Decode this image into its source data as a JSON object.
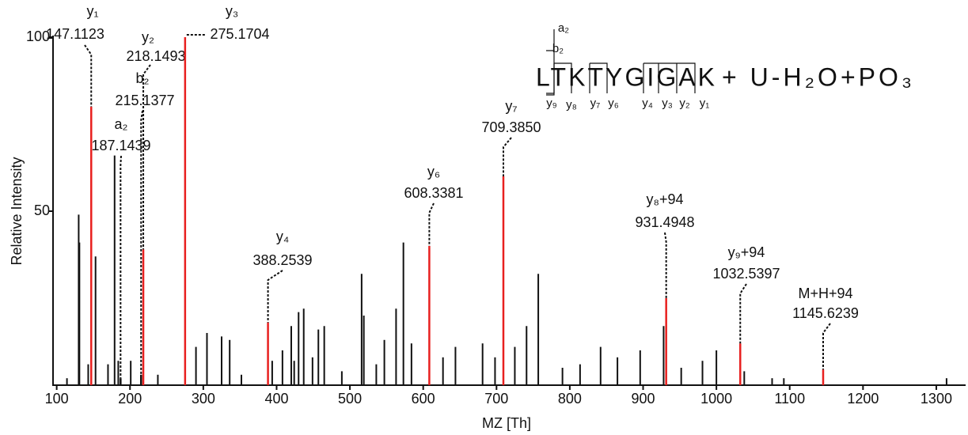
{
  "chart_data": {
    "type": "spectrum",
    "xlabel": "MZ [Th]",
    "ylabel": "Relative Intensity",
    "xlim": [
      95,
      1340
    ],
    "ylim": [
      0,
      100
    ],
    "xticks": [
      100,
      200,
      300,
      400,
      500,
      600,
      700,
      800,
      900,
      1000,
      1100,
      1200,
      1300
    ],
    "yticks": [
      50,
      100
    ],
    "peaks": {
      "color": "#111111",
      "x": [
        114,
        130,
        131,
        143,
        153,
        170,
        179,
        184,
        201,
        238,
        290,
        305,
        325,
        336,
        352,
        394,
        408,
        420,
        424,
        430,
        437,
        449,
        457,
        465,
        489,
        516,
        519,
        536,
        547,
        563,
        573,
        584,
        627,
        644,
        681,
        698,
        725,
        741,
        757,
        790,
        814,
        842,
        865,
        896,
        928,
        952,
        981,
        1000,
        1038,
        1076,
        1092,
        1314
      ],
      "values": [
        2,
        49,
        41,
        6,
        37,
        6,
        66,
        7,
        7,
        3,
        11,
        15,
        14,
        13,
        3,
        7,
        10,
        17,
        7,
        21,
        22,
        8,
        16,
        17,
        4,
        32,
        20,
        6,
        13,
        22,
        41,
        12,
        8,
        11,
        12,
        8,
        11,
        17,
        32,
        5,
        6,
        11,
        8,
        10,
        17,
        5,
        7,
        10,
        4,
        2,
        2,
        2
      ]
    },
    "annotations": [
      {
        "ion": "y₁",
        "x": 147.1123,
        "value": 80,
        "color": "#e8201f"
      },
      {
        "ion": "y₂",
        "x": 218.1493,
        "value": 39,
        "color": "#e8201f"
      },
      {
        "ion": "b₂",
        "x": 215.1377,
        "value": 3,
        "color": "#111111"
      },
      {
        "ion": "a₂",
        "x": 187.1439,
        "value": 2,
        "color": "#111111"
      },
      {
        "ion": "y₃",
        "x": 275.1704,
        "value": 100,
        "color": "#e8201f"
      },
      {
        "ion": "y₄",
        "x": 388.2539,
        "value": 18,
        "color": "#e8201f"
      },
      {
        "ion": "y₆",
        "x": 608.3381,
        "value": 40,
        "color": "#e8201f"
      },
      {
        "ion": "y₇",
        "x": 709.385,
        "x_label": "709.3850",
        "value": 60,
        "color": "#e8201f"
      },
      {
        "ion": "y₈+94",
        "x": 931.4948,
        "value": 25,
        "color": "#e8201f"
      },
      {
        "ion": "y₉+94",
        "x": 1032.5397,
        "value": 12,
        "color": "#e8201f"
      },
      {
        "ion": "M+H+94",
        "x": 1145.6239,
        "value": 4.5,
        "color": "#e8201f"
      }
    ],
    "peptide": {
      "sequence": "LTKTYGIGAK",
      "modification": "+ U-H₂O+PO₃",
      "fragments": [
        "a₂",
        "b₂",
        "y₉",
        "y₈",
        "y₇",
        "y₆",
        "y₄",
        "y₃",
        "y₂",
        "y₁"
      ]
    }
  }
}
